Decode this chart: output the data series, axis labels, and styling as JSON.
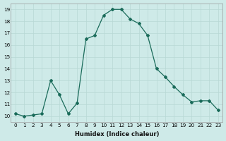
{
  "x": [
    0,
    1,
    2,
    3,
    4,
    5,
    6,
    7,
    8,
    9,
    10,
    11,
    12,
    13,
    14,
    15,
    16,
    17,
    18,
    19,
    20,
    21,
    22,
    23
  ],
  "y": [
    10.2,
    10.0,
    10.1,
    10.2,
    13.0,
    11.8,
    10.2,
    11.1,
    16.5,
    16.8,
    18.5,
    19.0,
    19.0,
    18.2,
    17.8,
    16.8,
    14.0,
    13.3,
    12.5,
    11.8,
    11.2,
    11.3,
    11.3,
    10.5
  ],
  "xlabel": "Humidex (Indice chaleur)",
  "xlim": [
    -0.5,
    23.5
  ],
  "ylim": [
    9.5,
    19.5
  ],
  "yticks": [
    10,
    11,
    12,
    13,
    14,
    15,
    16,
    17,
    18,
    19
  ],
  "xticks": [
    0,
    1,
    2,
    3,
    4,
    5,
    6,
    7,
    8,
    9,
    10,
    11,
    12,
    13,
    14,
    15,
    16,
    17,
    18,
    19,
    20,
    21,
    22,
    23
  ],
  "line_color": "#1a6b5a",
  "marker_size": 2.0,
  "bg_color": "#ceeae8",
  "grid_color": "#b8d8d5",
  "label_fontsize": 6.0,
  "tick_fontsize": 5.2
}
